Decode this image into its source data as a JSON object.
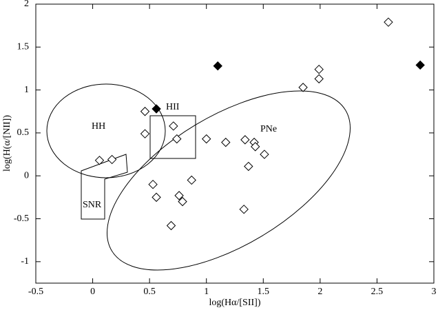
{
  "chart_data": {
    "type": "scatter",
    "xlabel": "log(Hα/[SII])",
    "ylabel": "log(H(α/[NII])",
    "xlim": [
      -0.5,
      3
    ],
    "ylim": [
      -1.25,
      2
    ],
    "xticks": [
      -0.5,
      0,
      0.5,
      1,
      1.5,
      2,
      2.5,
      3
    ],
    "yticks": [
      -1,
      -0.5,
      0,
      0.5,
      1,
      1.5,
      2
    ],
    "annotations": [
      "HH",
      "HII",
      "PNe",
      "SNR"
    ],
    "series": [
      {
        "marker": "open",
        "color": "#000000",
        "x": [
          0.06,
          0.17,
          0.46,
          0.46,
          0.53,
          0.56,
          0.71,
          0.74,
          0.76,
          0.79,
          0.69,
          0.87,
          1.0,
          1.17,
          1.34,
          1.42,
          1.43,
          1.37,
          1.51,
          1.33,
          1.85,
          1.99,
          1.99,
          2.6
        ],
        "values": [
          0.18,
          0.19,
          0.75,
          0.49,
          -0.1,
          -0.25,
          0.58,
          0.43,
          -0.23,
          -0.3,
          -0.58,
          -0.05,
          0.43,
          0.39,
          0.42,
          0.39,
          0.34,
          0.11,
          0.25,
          -0.39,
          1.03,
          1.24,
          1.13,
          1.79
        ]
      },
      {
        "marker": "filled",
        "color": "#000000",
        "x": [
          0.56,
          1.1,
          2.88
        ],
        "values": [
          0.78,
          1.28,
          1.29
        ]
      }
    ]
  }
}
